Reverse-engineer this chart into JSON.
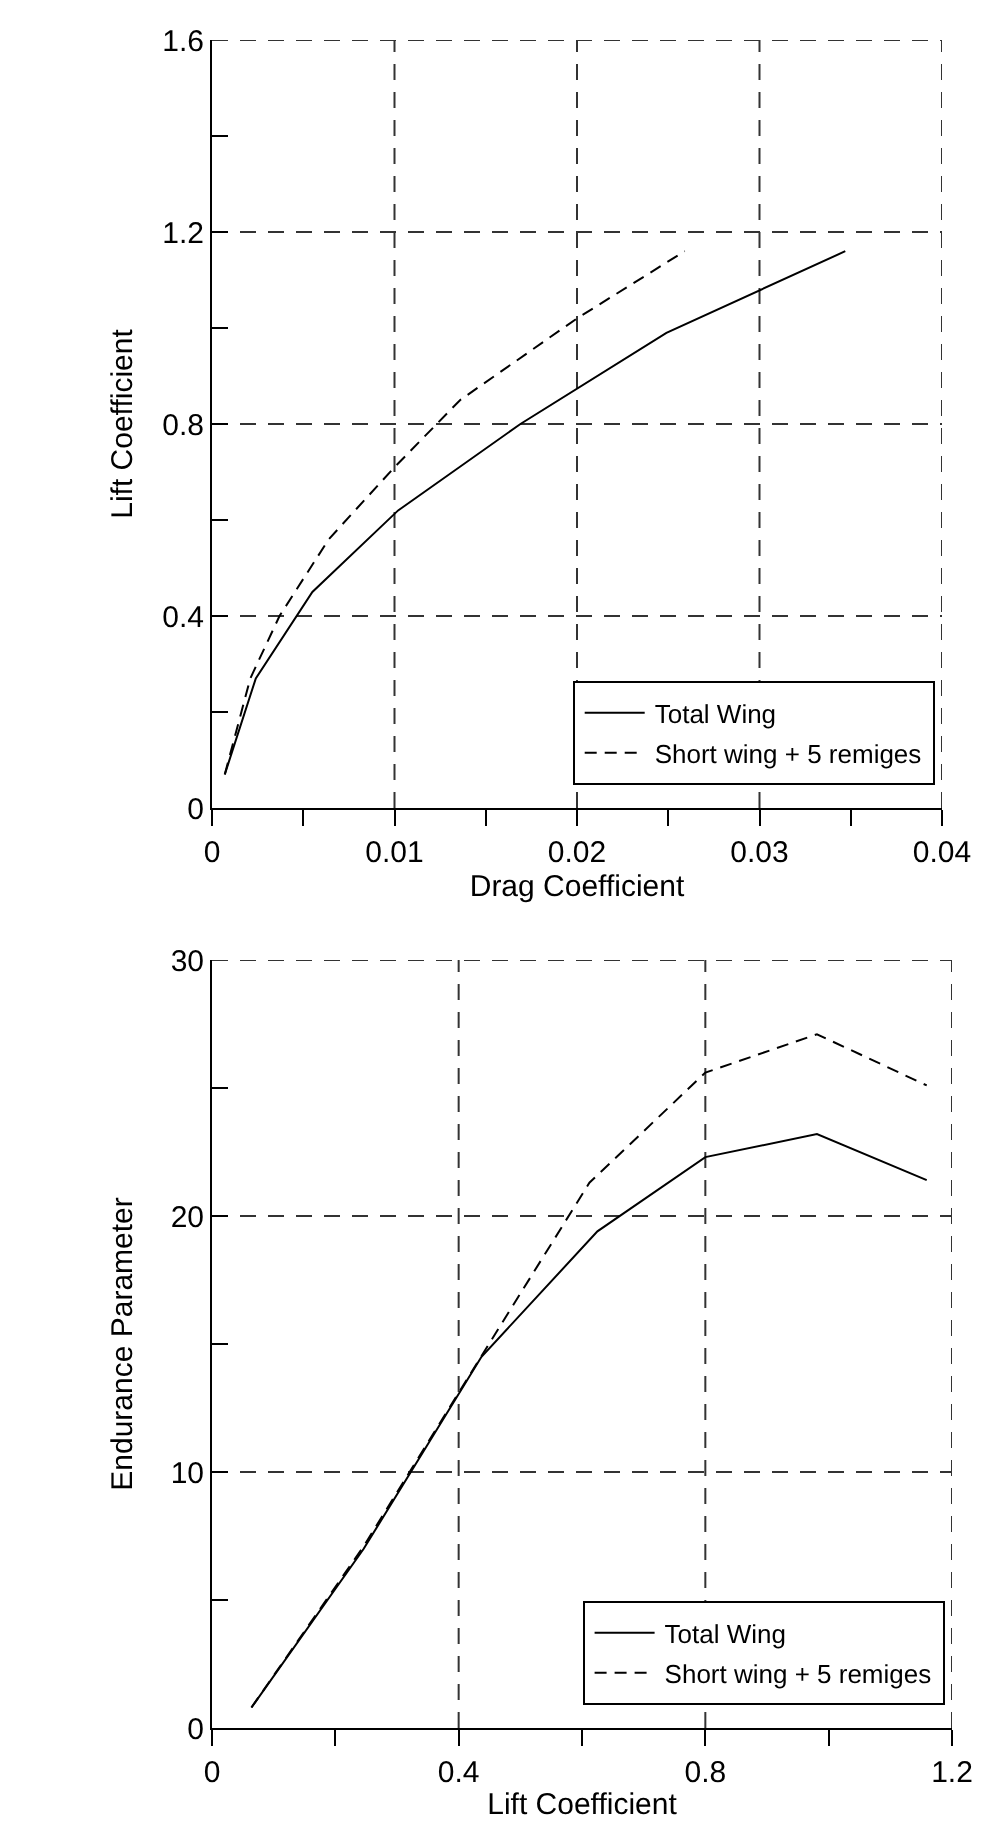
{
  "chart_data": [
    {
      "type": "line",
      "xlabel": "Drag Coefficient",
      "ylabel": "Lift Coefficient",
      "xlim": [
        0,
        0.04
      ],
      "ylim": [
        0,
        1.6
      ],
      "xticks": [
        0,
        {
          "value": 0.005,
          "label": null
        },
        0.01,
        {
          "value": 0.015,
          "label": null
        },
        0.02,
        {
          "value": 0.025,
          "label": null
        },
        0.03,
        {
          "value": 0.035,
          "label": null
        },
        0.04
      ],
      "yticks": [
        0,
        {
          "value": 0.2,
          "label": null
        },
        0.4,
        {
          "value": 0.6,
          "label": null
        },
        0.8,
        {
          "value": 1.0,
          "label": null
        },
        1.2,
        {
          "value": 1.4,
          "label": null
        },
        1.6
      ],
      "grid": true,
      "legend": "bottom right",
      "marker": "none",
      "series": [
        {
          "name": "Total Wing",
          "color": "#000000",
          "line_style": "solid",
          "x": [
            0.0007,
            0.0024,
            0.0055,
            0.0102,
            0.0169,
            0.0249,
            0.0347
          ],
          "values": [
            0.07,
            0.27,
            0.45,
            0.62,
            0.8,
            0.99,
            1.16
          ]
        },
        {
          "name": "Short wing + 5 remiges",
          "color": "#000000",
          "line_style": "dashed",
          "x": [
            0.0007,
            0.0021,
            0.0037,
            0.0064,
            0.01,
            0.0136,
            0.02,
            0.0259
          ],
          "values": [
            0.07,
            0.27,
            0.4,
            0.56,
            0.71,
            0.85,
            1.02,
            1.16
          ]
        }
      ]
    },
    {
      "type": "line",
      "xlabel": "Lift Coefficient",
      "ylabel": "Endurance Parameter",
      "xlim": [
        0,
        1.2
      ],
      "ylim": [
        0,
        30
      ],
      "xticks": [
        0,
        {
          "value": 0.2,
          "label": null
        },
        0.4,
        {
          "value": 0.6,
          "label": null
        },
        0.8,
        {
          "value": 1.0,
          "label": null
        },
        1.2
      ],
      "yticks": [
        0,
        {
          "value": 5,
          "label": null
        },
        10,
        {
          "value": 15,
          "label": null
        },
        20,
        {
          "value": 25,
          "label": null
        },
        30
      ],
      "grid": true,
      "legend": "bottom right",
      "marker": "none",
      "series": [
        {
          "name": "Total Wing",
          "color": "#000000",
          "line_style": "solid",
          "x": [
            0.064,
            0.246,
            0.437,
            0.625,
            0.8,
            0.981,
            1.159
          ],
          "values": [
            0.8,
            7.0,
            14.5,
            19.4,
            22.3,
            23.2,
            21.4
          ]
        },
        {
          "name": "Short wing + 5 remiges",
          "color": "#000000",
          "line_style": "dashed",
          "x": [
            0.064,
            0.246,
            0.4,
            0.612,
            0.8,
            0.981,
            1.159
          ],
          "values": [
            0.8,
            7.1,
            13.1,
            21.3,
            25.6,
            27.1,
            25.1
          ]
        }
      ]
    }
  ]
}
